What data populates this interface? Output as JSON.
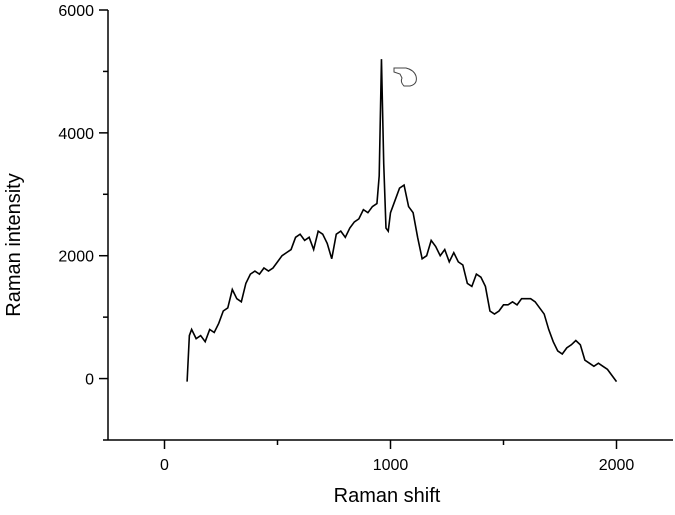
{
  "chart_data": {
    "type": "line",
    "x_label": "Raman shift",
    "y_label": "Raman intensity",
    "x": [
      100,
      110,
      120,
      140,
      160,
      180,
      200,
      220,
      240,
      260,
      280,
      300,
      320,
      340,
      360,
      380,
      400,
      420,
      440,
      460,
      480,
      500,
      520,
      540,
      560,
      580,
      600,
      620,
      640,
      660,
      680,
      700,
      720,
      740,
      760,
      780,
      800,
      820,
      840,
      860,
      880,
      900,
      920,
      940,
      950,
      960,
      970,
      980,
      990,
      1000,
      1020,
      1040,
      1060,
      1080,
      1100,
      1120,
      1140,
      1160,
      1180,
      1200,
      1220,
      1240,
      1260,
      1280,
      1300,
      1320,
      1340,
      1360,
      1380,
      1400,
      1420,
      1440,
      1460,
      1480,
      1500,
      1520,
      1540,
      1560,
      1580,
      1600,
      1620,
      1640,
      1660,
      1680,
      1700,
      1720,
      1740,
      1760,
      1780,
      1800,
      1820,
      1840,
      1860,
      1880,
      1900,
      1920,
      1940,
      1960,
      1980,
      2000
    ],
    "series": [
      {
        "color": "#000000",
        "values": [
          -50,
          700,
          800,
          650,
          700,
          600,
          800,
          750,
          900,
          1100,
          1150,
          1450,
          1300,
          1250,
          1550,
          1700,
          1750,
          1700,
          1800,
          1750,
          1800,
          1900,
          2000,
          2050,
          2100,
          2300,
          2350,
          2250,
          2300,
          2100,
          2400,
          2350,
          2200,
          1950,
          2350,
          2400,
          2300,
          2450,
          2550,
          2600,
          2750,
          2700,
          2800,
          2850,
          3300,
          5200,
          3500,
          2450,
          2400,
          2700,
          2900,
          3100,
          3150,
          2800,
          2700,
          2300,
          1950,
          2000,
          2250,
          2150,
          2000,
          2100,
          1900,
          2050,
          1900,
          1850,
          1550,
          1500,
          1700,
          1650,
          1500,
          1100,
          1050,
          1100,
          1200,
          1200,
          1250,
          1200,
          1300,
          1300,
          1300,
          1250,
          1150,
          1050,
          800,
          600,
          450,
          400,
          500,
          550,
          620,
          550,
          300,
          250,
          200,
          250,
          200,
          150,
          50,
          -50
        ]
      }
    ],
    "xlim": [
      -250,
      2250
    ],
    "xticks": [
      0,
      1000,
      2000
    ],
    "xminorticks": [
      500,
      1500
    ],
    "ylim": [
      -1000,
      6000
    ],
    "yticks": [
      0,
      2000,
      4000,
      6000
    ],
    "yminorticks": [
      -1000,
      1000,
      3000,
      5000
    ]
  }
}
